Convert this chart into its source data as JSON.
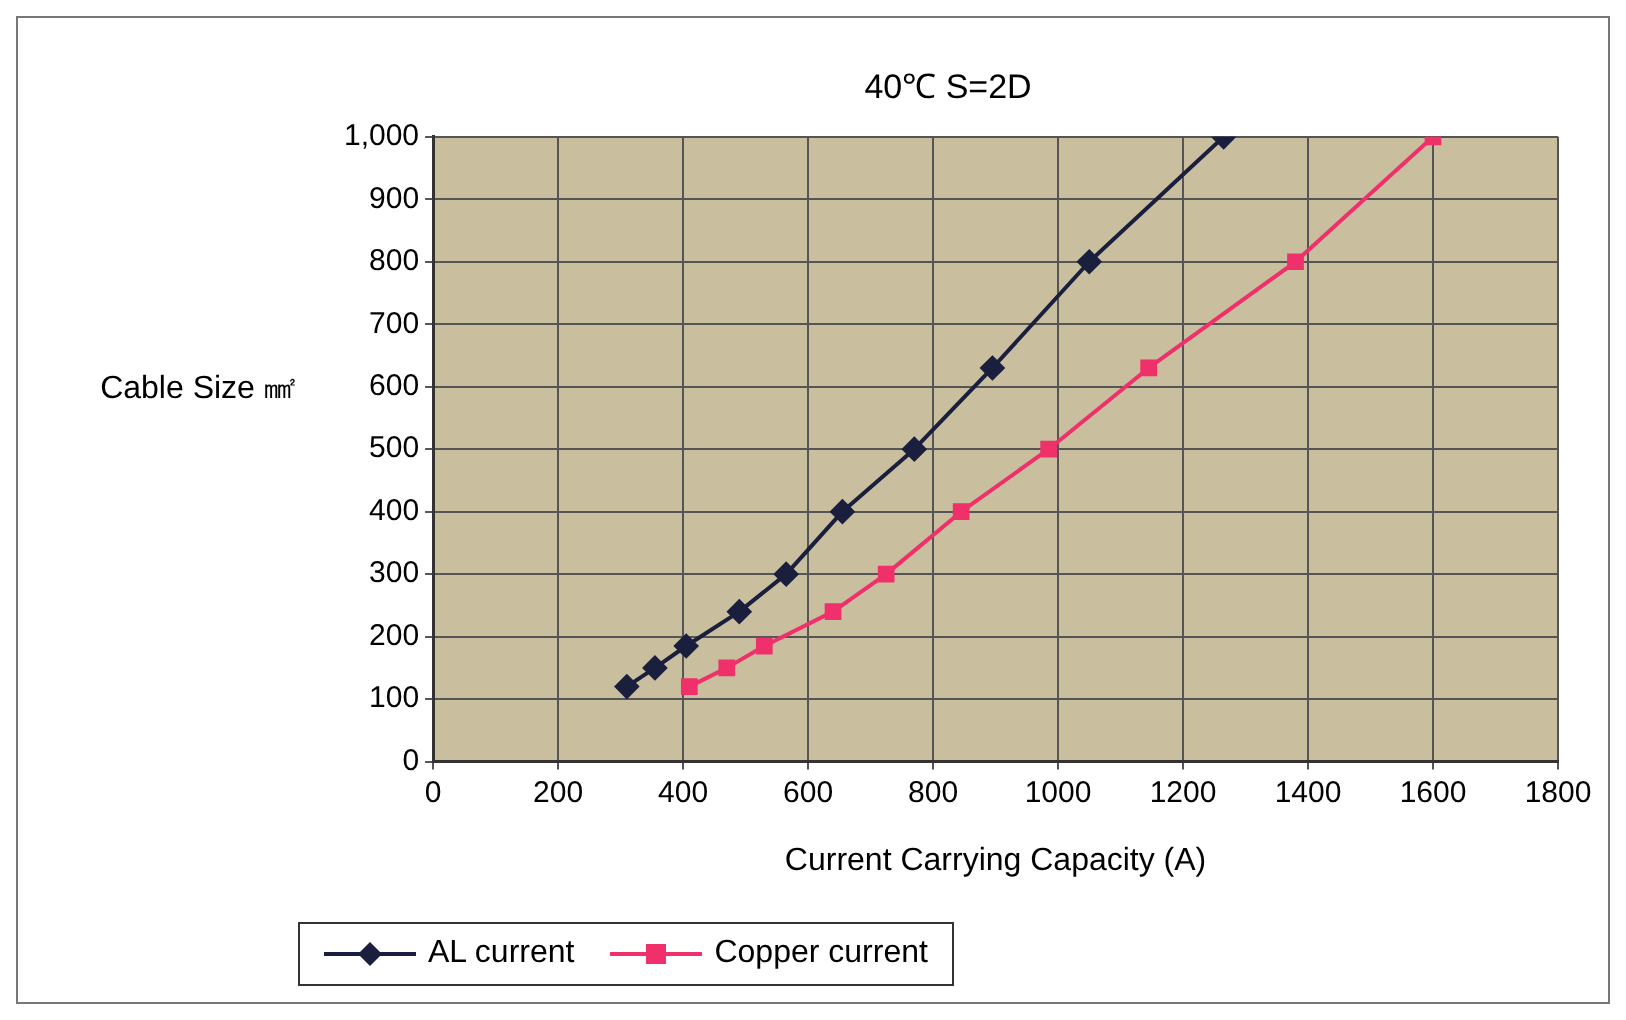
{
  "chart_data": {
    "type": "line",
    "title": "40℃ S=2D",
    "xlabel": "Current Carrying Capacity (A)",
    "ylabel": "Cable Size ㎟",
    "xlim": [
      0,
      1800
    ],
    "xticks": [
      0,
      200,
      400,
      600,
      800,
      1000,
      1200,
      1400,
      1600,
      1800
    ],
    "ylim": [
      0,
      1000
    ],
    "yticks": [
      0,
      {
        "value": 100,
        "label": "100"
      },
      {
        "value": 200,
        "label": "200"
      },
      {
        "value": 300,
        "label": "300"
      },
      {
        "value": 400,
        "label": "400"
      },
      {
        "value": 500,
        "label": "500"
      },
      {
        "value": 600,
        "label": "600"
      },
      {
        "value": 700,
        "label": "700"
      },
      {
        "value": 800,
        "label": "800"
      },
      {
        "value": 900,
        "label": "900"
      },
      {
        "value": 1000,
        "label": "1,000"
      }
    ],
    "grid": true,
    "legend": "bottom left",
    "line_style": "solid",
    "series": [
      {
        "name": "AL current",
        "color": "#1a1f3d",
        "marker": "diamond",
        "x": [
          310,
          355,
          405,
          490,
          565,
          655,
          770,
          895,
          1050,
          1265
        ],
        "values": [
          120,
          150,
          185,
          240,
          300,
          400,
          500,
          630,
          800,
          1000
        ]
      },
      {
        "name": "Copper current",
        "color": "#f0306a",
        "marker": "square",
        "x": [
          410,
          470,
          530,
          640,
          725,
          845,
          985,
          1145,
          1380,
          1600
        ],
        "values": [
          120,
          150,
          185,
          240,
          300,
          400,
          500,
          630,
          800,
          1000
        ]
      }
    ]
  }
}
